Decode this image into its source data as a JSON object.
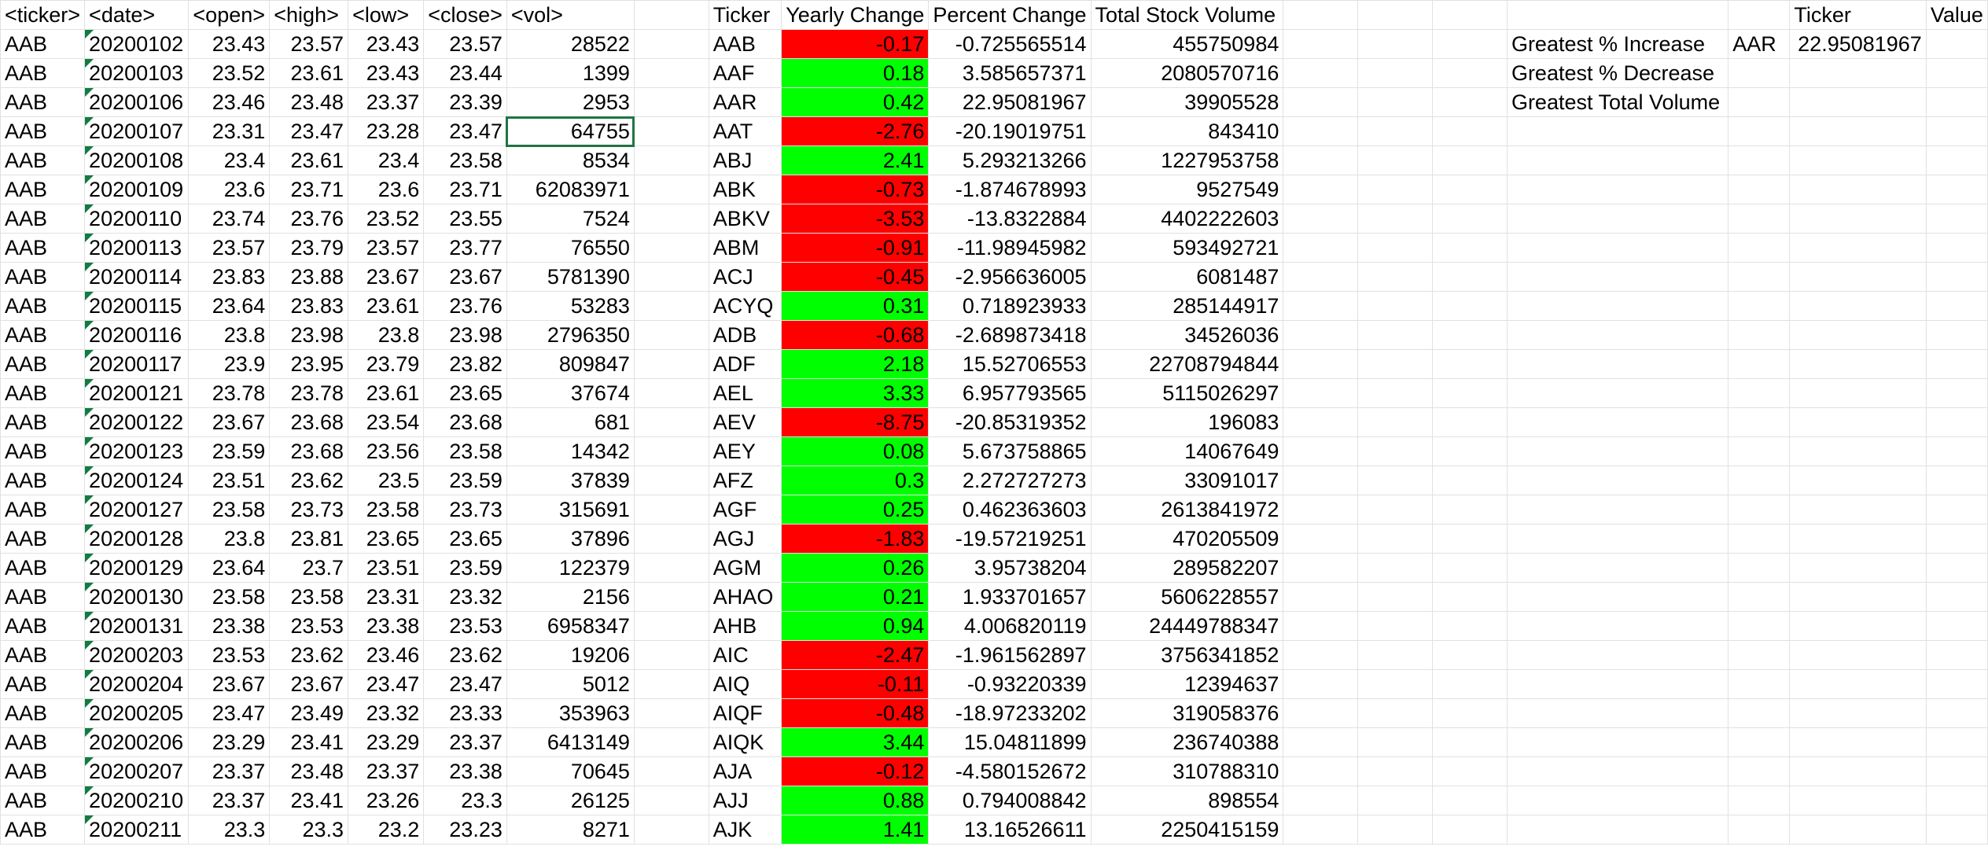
{
  "headers": {
    "ticker": "<ticker>",
    "date": "<date>",
    "open": "<open>",
    "high": "<high>",
    "low": "<low>",
    "close": "<close>",
    "vol": "<vol>",
    "s_ticker": "Ticker",
    "s_yearly": "Yearly Change",
    "s_percent": "Percent Change",
    "s_volume": "Total Stock Volume",
    "g_ticker": "Ticker",
    "g_value": "Value"
  },
  "raw_rows": [
    {
      "ticker": "AAB",
      "date": "20200102",
      "open": "23.43",
      "high": "23.57",
      "low": "23.43",
      "close": "23.57",
      "vol": "28522"
    },
    {
      "ticker": "AAB",
      "date": "20200103",
      "open": "23.52",
      "high": "23.61",
      "low": "23.43",
      "close": "23.44",
      "vol": "1399"
    },
    {
      "ticker": "AAB",
      "date": "20200106",
      "open": "23.46",
      "high": "23.48",
      "low": "23.37",
      "close": "23.39",
      "vol": "2953"
    },
    {
      "ticker": "AAB",
      "date": "20200107",
      "open": "23.31",
      "high": "23.47",
      "low": "23.28",
      "close": "23.47",
      "vol": "64755"
    },
    {
      "ticker": "AAB",
      "date": "20200108",
      "open": "23.4",
      "high": "23.61",
      "low": "23.4",
      "close": "23.58",
      "vol": "8534"
    },
    {
      "ticker": "AAB",
      "date": "20200109",
      "open": "23.6",
      "high": "23.71",
      "low": "23.6",
      "close": "23.71",
      "vol": "62083971"
    },
    {
      "ticker": "AAB",
      "date": "20200110",
      "open": "23.74",
      "high": "23.76",
      "low": "23.52",
      "close": "23.55",
      "vol": "7524"
    },
    {
      "ticker": "AAB",
      "date": "20200113",
      "open": "23.57",
      "high": "23.79",
      "low": "23.57",
      "close": "23.77",
      "vol": "76550"
    },
    {
      "ticker": "AAB",
      "date": "20200114",
      "open": "23.83",
      "high": "23.88",
      "low": "23.67",
      "close": "23.67",
      "vol": "5781390"
    },
    {
      "ticker": "AAB",
      "date": "20200115",
      "open": "23.64",
      "high": "23.83",
      "low": "23.61",
      "close": "23.76",
      "vol": "53283"
    },
    {
      "ticker": "AAB",
      "date": "20200116",
      "open": "23.8",
      "high": "23.98",
      "low": "23.8",
      "close": "23.98",
      "vol": "2796350"
    },
    {
      "ticker": "AAB",
      "date": "20200117",
      "open": "23.9",
      "high": "23.95",
      "low": "23.79",
      "close": "23.82",
      "vol": "809847"
    },
    {
      "ticker": "AAB",
      "date": "20200121",
      "open": "23.78",
      "high": "23.78",
      "low": "23.61",
      "close": "23.65",
      "vol": "37674"
    },
    {
      "ticker": "AAB",
      "date": "20200122",
      "open": "23.67",
      "high": "23.68",
      "low": "23.54",
      "close": "23.68",
      "vol": "681"
    },
    {
      "ticker": "AAB",
      "date": "20200123",
      "open": "23.59",
      "high": "23.68",
      "low": "23.56",
      "close": "23.58",
      "vol": "14342"
    },
    {
      "ticker": "AAB",
      "date": "20200124",
      "open": "23.51",
      "high": "23.62",
      "low": "23.5",
      "close": "23.59",
      "vol": "37839"
    },
    {
      "ticker": "AAB",
      "date": "20200127",
      "open": "23.58",
      "high": "23.73",
      "low": "23.58",
      "close": "23.73",
      "vol": "315691"
    },
    {
      "ticker": "AAB",
      "date": "20200128",
      "open": "23.8",
      "high": "23.81",
      "low": "23.65",
      "close": "23.65",
      "vol": "37896"
    },
    {
      "ticker": "AAB",
      "date": "20200129",
      "open": "23.64",
      "high": "23.7",
      "low": "23.51",
      "close": "23.59",
      "vol": "122379"
    },
    {
      "ticker": "AAB",
      "date": "20200130",
      "open": "23.58",
      "high": "23.58",
      "low": "23.31",
      "close": "23.32",
      "vol": "2156"
    },
    {
      "ticker": "AAB",
      "date": "20200131",
      "open": "23.38",
      "high": "23.53",
      "low": "23.38",
      "close": "23.53",
      "vol": "6958347"
    },
    {
      "ticker": "AAB",
      "date": "20200203",
      "open": "23.53",
      "high": "23.62",
      "low": "23.46",
      "close": "23.62",
      "vol": "19206"
    },
    {
      "ticker": "AAB",
      "date": "20200204",
      "open": "23.67",
      "high": "23.67",
      "low": "23.47",
      "close": "23.47",
      "vol": "5012"
    },
    {
      "ticker": "AAB",
      "date": "20200205",
      "open": "23.47",
      "high": "23.49",
      "low": "23.32",
      "close": "23.33",
      "vol": "353963"
    },
    {
      "ticker": "AAB",
      "date": "20200206",
      "open": "23.29",
      "high": "23.41",
      "low": "23.29",
      "close": "23.37",
      "vol": "6413149"
    },
    {
      "ticker": "AAB",
      "date": "20200207",
      "open": "23.37",
      "high": "23.48",
      "low": "23.37",
      "close": "23.38",
      "vol": "70645"
    },
    {
      "ticker": "AAB",
      "date": "20200210",
      "open": "23.37",
      "high": "23.41",
      "low": "23.26",
      "close": "23.3",
      "vol": "26125"
    },
    {
      "ticker": "AAB",
      "date": "20200211",
      "open": "23.3",
      "high": "23.3",
      "low": "23.2",
      "close": "23.23",
      "vol": "8271"
    }
  ],
  "summary_rows": [
    {
      "ticker": "AAB",
      "yearly": "-0.17",
      "percent": "-0.725565514",
      "volume": "455750984"
    },
    {
      "ticker": "AAF",
      "yearly": "0.18",
      "percent": "3.585657371",
      "volume": "2080570716"
    },
    {
      "ticker": "AAR",
      "yearly": "0.42",
      "percent": "22.95081967",
      "volume": "39905528"
    },
    {
      "ticker": "AAT",
      "yearly": "-2.76",
      "percent": "-20.19019751",
      "volume": "843410"
    },
    {
      "ticker": "ABJ",
      "yearly": "2.41",
      "percent": "5.293213266",
      "volume": "1227953758"
    },
    {
      "ticker": "ABK",
      "yearly": "-0.73",
      "percent": "-1.874678993",
      "volume": "9527549"
    },
    {
      "ticker": "ABKV",
      "yearly": "-3.53",
      "percent": "-13.8322884",
      "volume": "4402222603"
    },
    {
      "ticker": "ABM",
      "yearly": "-0.91",
      "percent": "-11.98945982",
      "volume": "593492721"
    },
    {
      "ticker": "ACJ",
      "yearly": "-0.45",
      "percent": "-2.956636005",
      "volume": "6081487"
    },
    {
      "ticker": "ACYQ",
      "yearly": "0.31",
      "percent": "0.718923933",
      "volume": "285144917"
    },
    {
      "ticker": "ADB",
      "yearly": "-0.68",
      "percent": "-2.689873418",
      "volume": "34526036"
    },
    {
      "ticker": "ADF",
      "yearly": "2.18",
      "percent": "15.52706553",
      "volume": "22708794844"
    },
    {
      "ticker": "AEL",
      "yearly": "3.33",
      "percent": "6.957793565",
      "volume": "5115026297"
    },
    {
      "ticker": "AEV",
      "yearly": "-8.75",
      "percent": "-20.85319352",
      "volume": "196083"
    },
    {
      "ticker": "AEY",
      "yearly": "0.08",
      "percent": "5.673758865",
      "volume": "14067649"
    },
    {
      "ticker": "AFZ",
      "yearly": "0.3",
      "percent": "2.272727273",
      "volume": "33091017"
    },
    {
      "ticker": "AGF",
      "yearly": "0.25",
      "percent": "0.462363603",
      "volume": "2613841972"
    },
    {
      "ticker": "AGJ",
      "yearly": "-1.83",
      "percent": "-19.57219251",
      "volume": "470205509"
    },
    {
      "ticker": "AGM",
      "yearly": "0.26",
      "percent": "3.95738204",
      "volume": "289582207"
    },
    {
      "ticker": "AHAO",
      "yearly": "0.21",
      "percent": "1.933701657",
      "volume": "5606228557"
    },
    {
      "ticker": "AHB",
      "yearly": "0.94",
      "percent": "4.006820119",
      "volume": "24449788347"
    },
    {
      "ticker": "AIC",
      "yearly": "-2.47",
      "percent": "-1.961562897",
      "volume": "3756341852"
    },
    {
      "ticker": "AIQ",
      "yearly": "-0.11",
      "percent": "-0.93220339",
      "volume": "12394637"
    },
    {
      "ticker": "AIQF",
      "yearly": "-0.48",
      "percent": "-18.97233202",
      "volume": "319058376"
    },
    {
      "ticker": "AIQK",
      "yearly": "3.44",
      "percent": "15.04811899",
      "volume": "236740388"
    },
    {
      "ticker": "AJA",
      "yearly": "-0.12",
      "percent": "-4.580152672",
      "volume": "310788310"
    },
    {
      "ticker": "AJJ",
      "yearly": "0.88",
      "percent": "0.794008842",
      "volume": "898554"
    },
    {
      "ticker": "AJK",
      "yearly": "1.41",
      "percent": "13.16526611",
      "volume": "2250415159"
    }
  ],
  "greatest": [
    {
      "label": "Greatest % Increase",
      "ticker": "AAR",
      "value": "22.95081967"
    },
    {
      "label": "Greatest % Decrease",
      "ticker": "",
      "value": ""
    },
    {
      "label": "Greatest Total Volume",
      "ticker": "",
      "value": ""
    }
  ],
  "selected_cell": {
    "row": 4,
    "column": "vol"
  },
  "colors": {
    "positive": "#00ff00",
    "negative": "#ff0000",
    "gridline": "#e1e1e1",
    "selection": "#217346"
  }
}
